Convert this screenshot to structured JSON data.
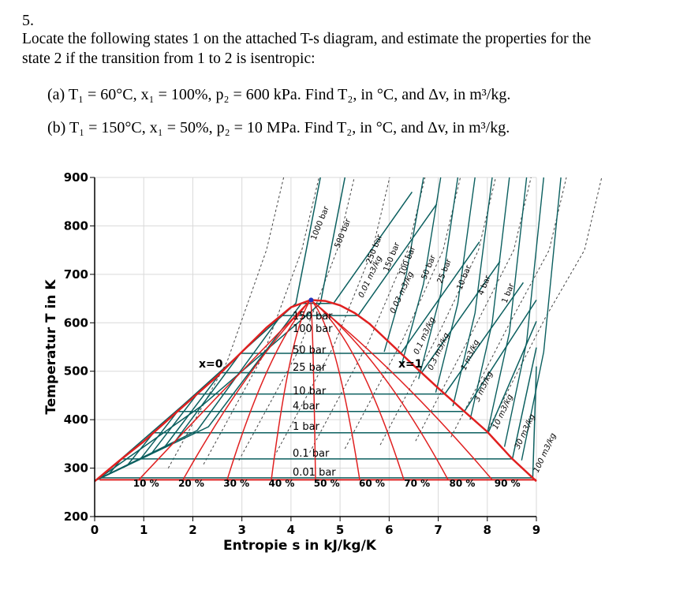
{
  "problem": {
    "number": "5.",
    "intro_line1": "Locate the following states 1 on the attached T-s diagram, and estimate the properties for the",
    "intro_line2": "state 2 if the transition from 1 to 2 is isentropic:",
    "part_a": "(a)   T₁ = 60°C, x₁ = 100%, p₂ = 600 kPa. Find T₂, in °C, and Δv, in m³/kg.",
    "part_b": "(b)   T₁  = 150°C, x₁ = 50%, p₂ = 10 MPa. Find T₂, in °C, and Δv, in m³/kg."
  },
  "chart_data": {
    "type": "line",
    "title": "",
    "xlabel": "Entropie s in kJ/kg/K",
    "ylabel": "Temperatur T in K",
    "xlim": [
      0,
      9
    ],
    "ylim": [
      200,
      900
    ],
    "xticks": [
      "0",
      "1",
      "2",
      "3",
      "4",
      "5",
      "6",
      "7",
      "8",
      "9"
    ],
    "yticks": [
      "200",
      "300",
      "400",
      "500",
      "600",
      "700",
      "800",
      "900"
    ],
    "grid": true,
    "series": [
      {
        "name": "saturation dome",
        "s": [
          0.0,
          0.5,
          1.0,
          1.5,
          2.0,
          2.5,
          3.0,
          3.5,
          4.0,
          4.4,
          4.7,
          5.0,
          5.3,
          5.6,
          6.0,
          6.5,
          7.0,
          7.5,
          8.0,
          8.5,
          9.0
        ],
        "T": [
          273,
          315,
          355,
          400,
          445,
          490,
          540,
          590,
          632,
          647,
          645,
          636,
          620,
          598,
          560,
          512,
          465,
          420,
          375,
          320,
          273
        ]
      },
      {
        "name": "critical point",
        "s": [
          4.41
        ],
        "T": [
          647
        ]
      }
    ],
    "quality_labels": [
      "x=0",
      "x=1"
    ],
    "quality_lines": [
      "10 %",
      "20 %",
      "30 %",
      "40 %",
      "50 %",
      "60 %",
      "70 %",
      "80 %",
      "90 %"
    ],
    "isobar_labels_inside": [
      "150 bar",
      "100 bar",
      "50 bar",
      "25 bar",
      "10 bar",
      "4 bar",
      "1 bar",
      "0.1 bar",
      "0.01 bar"
    ],
    "isobar_labels_top": [
      "1000 bar",
      "500 bar",
      "250 bar",
      "150 bar",
      "100 bar",
      "50 bar",
      "25 bar",
      "10 bar",
      "4 bar",
      "1 bar"
    ],
    "isochore_labels": [
      "0.01 m3/kg",
      "0.03 m3/kg",
      "0.1 m3/kg",
      "0.3 m3/kg",
      "1 m3/kg",
      "3 m3/kg",
      "10 m3/kg",
      "30 m3/kg",
      "100 m3/kg"
    ]
  }
}
